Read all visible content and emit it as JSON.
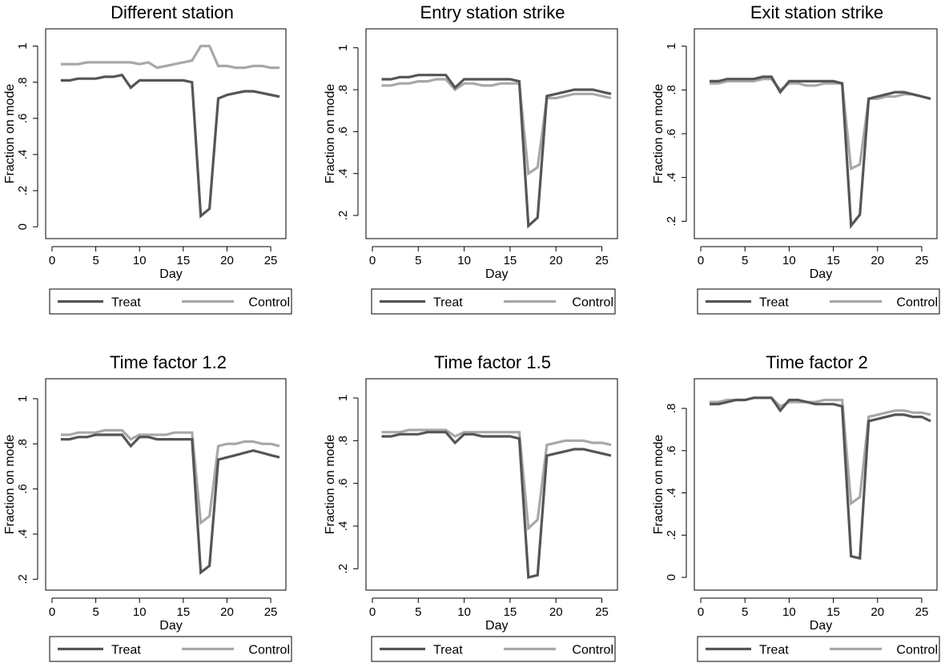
{
  "figure": {
    "panels": [
      {
        "title": "Different station",
        "xlabel": "Day",
        "ylabel": "Fraction on mode"
      },
      {
        "title": "Entry station strike",
        "xlabel": "Day",
        "ylabel": "Fraction on mode"
      },
      {
        "title": "Exit station strike",
        "xlabel": "Day",
        "ylabel": "Fraction on mode"
      },
      {
        "title": "Time factor 1.2",
        "xlabel": "Day",
        "ylabel": "Fraction on mode"
      },
      {
        "title": "Time factor 1.5",
        "xlabel": "Day",
        "ylabel": "Fraction on mode"
      },
      {
        "title": "Time factor 2",
        "xlabel": "Day",
        "ylabel": "Fraction on mode"
      }
    ],
    "legend": {
      "treat": "Treat",
      "control": "Control"
    },
    "colors": {
      "treat": "#555555",
      "control": "#a8a8a8"
    }
  },
  "chart_data": [
    {
      "type": "line",
      "title": "Different station",
      "xlabel": "Day",
      "ylabel": "Fraction on mode",
      "xlim": [
        0,
        26
      ],
      "ylim": [
        -0.03,
        1.06
      ],
      "xticks": [
        0,
        5,
        10,
        15,
        20,
        25
      ],
      "xtick_labels": [
        "0",
        "5",
        "10",
        "15",
        "20",
        "25"
      ],
      "yticks": [
        0,
        0.2,
        0.4,
        0.6,
        0.8,
        1
      ],
      "ytick_labels": [
        "0",
        ".2",
        ".4",
        ".6",
        ".8",
        "1"
      ],
      "grid": false,
      "legend_position": "bottom",
      "x": [
        1,
        2,
        3,
        4,
        5,
        6,
        7,
        8,
        9,
        10,
        11,
        12,
        13,
        14,
        15,
        16,
        17,
        18,
        19,
        20,
        21,
        22,
        23,
        24,
        25,
        26
      ],
      "series": [
        {
          "name": "Treat",
          "values": [
            0.81,
            0.81,
            0.82,
            0.82,
            0.82,
            0.83,
            0.83,
            0.84,
            0.77,
            0.81,
            0.81,
            0.81,
            0.81,
            0.81,
            0.81,
            0.8,
            0.06,
            0.1,
            0.71,
            0.73,
            0.74,
            0.75,
            0.75,
            0.74,
            0.73,
            0.72
          ]
        },
        {
          "name": "Control",
          "values": [
            0.9,
            0.9,
            0.9,
            0.91,
            0.91,
            0.91,
            0.91,
            0.91,
            0.91,
            0.9,
            0.91,
            0.88,
            0.89,
            0.9,
            0.91,
            0.92,
            1.0,
            1.0,
            0.89,
            0.89,
            0.88,
            0.88,
            0.89,
            0.89,
            0.88,
            0.88
          ]
        }
      ]
    },
    {
      "type": "line",
      "title": "Entry station strike",
      "xlabel": "Day",
      "ylabel": "Fraction on mode",
      "xlim": [
        0,
        26
      ],
      "ylim": [
        0.12,
        1.06
      ],
      "xticks": [
        0,
        5,
        10,
        15,
        20,
        25
      ],
      "xtick_labels": [
        "0",
        "5",
        "10",
        "15",
        "20",
        "25"
      ],
      "yticks": [
        0.2,
        0.4,
        0.6,
        0.8,
        1
      ],
      "ytick_labels": [
        ".2",
        ".4",
        ".6",
        ".8",
        "1"
      ],
      "grid": false,
      "legend_position": "bottom",
      "x": [
        1,
        2,
        3,
        4,
        5,
        6,
        7,
        8,
        9,
        10,
        11,
        12,
        13,
        14,
        15,
        16,
        17,
        18,
        19,
        20,
        21,
        22,
        23,
        24,
        25,
        26
      ],
      "series": [
        {
          "name": "Treat",
          "values": [
            0.85,
            0.85,
            0.86,
            0.86,
            0.87,
            0.87,
            0.87,
            0.87,
            0.81,
            0.85,
            0.85,
            0.85,
            0.85,
            0.85,
            0.85,
            0.84,
            0.15,
            0.19,
            0.77,
            0.78,
            0.79,
            0.8,
            0.8,
            0.8,
            0.79,
            0.78
          ]
        },
        {
          "name": "Control",
          "values": [
            0.82,
            0.82,
            0.83,
            0.83,
            0.84,
            0.84,
            0.85,
            0.85,
            0.8,
            0.83,
            0.83,
            0.82,
            0.82,
            0.83,
            0.83,
            0.83,
            0.4,
            0.43,
            0.76,
            0.76,
            0.77,
            0.78,
            0.78,
            0.78,
            0.77,
            0.76
          ]
        }
      ]
    },
    {
      "type": "line",
      "title": "Exit station strike",
      "xlabel": "Day",
      "ylabel": "Fraction on mode",
      "xlim": [
        0,
        26
      ],
      "ylim": [
        0.15,
        1.05
      ],
      "xticks": [
        0,
        5,
        10,
        15,
        20,
        25
      ],
      "xtick_labels": [
        "0",
        "5",
        "10",
        "15",
        "20",
        "25"
      ],
      "yticks": [
        0.2,
        0.4,
        0.6,
        0.8,
        1
      ],
      "ytick_labels": [
        ".2",
        ".4",
        ".6",
        ".8",
        "1"
      ],
      "grid": false,
      "legend_position": "bottom",
      "x": [
        1,
        2,
        3,
        4,
        5,
        6,
        7,
        8,
        9,
        10,
        11,
        12,
        13,
        14,
        15,
        16,
        17,
        18,
        19,
        20,
        21,
        22,
        23,
        24,
        25,
        26
      ],
      "series": [
        {
          "name": "Treat",
          "values": [
            0.84,
            0.84,
            0.85,
            0.85,
            0.85,
            0.85,
            0.86,
            0.86,
            0.79,
            0.84,
            0.84,
            0.84,
            0.84,
            0.84,
            0.84,
            0.83,
            0.18,
            0.23,
            0.76,
            0.77,
            0.78,
            0.79,
            0.79,
            0.78,
            0.77,
            0.76
          ]
        },
        {
          "name": "Control",
          "values": [
            0.83,
            0.83,
            0.84,
            0.84,
            0.84,
            0.84,
            0.85,
            0.85,
            0.8,
            0.83,
            0.83,
            0.82,
            0.82,
            0.83,
            0.83,
            0.83,
            0.44,
            0.46,
            0.76,
            0.76,
            0.77,
            0.77,
            0.78,
            0.78,
            0.77,
            0.76
          ]
        }
      ]
    },
    {
      "type": "line",
      "title": "Time factor 1.2",
      "xlabel": "Day",
      "ylabel": "Fraction on mode",
      "xlim": [
        0,
        26
      ],
      "ylim": [
        0.18,
        1.06
      ],
      "xticks": [
        0,
        5,
        10,
        15,
        20,
        25
      ],
      "xtick_labels": [
        "0",
        "5",
        "10",
        "15",
        "20",
        "25"
      ],
      "yticks": [
        0.2,
        0.4,
        0.6,
        0.8,
        1
      ],
      "ytick_labels": [
        ".2",
        ".4",
        ".6",
        ".8",
        "1"
      ],
      "grid": false,
      "legend_position": "bottom",
      "x": [
        1,
        2,
        3,
        4,
        5,
        6,
        7,
        8,
        9,
        10,
        11,
        12,
        13,
        14,
        15,
        16,
        17,
        18,
        19,
        20,
        21,
        22,
        23,
        24,
        25,
        26
      ],
      "series": [
        {
          "name": "Treat",
          "values": [
            0.82,
            0.82,
            0.83,
            0.83,
            0.84,
            0.84,
            0.84,
            0.84,
            0.79,
            0.83,
            0.83,
            0.82,
            0.82,
            0.82,
            0.82,
            0.82,
            0.23,
            0.26,
            0.73,
            0.74,
            0.75,
            0.76,
            0.77,
            0.76,
            0.75,
            0.74
          ]
        },
        {
          "name": "Control",
          "values": [
            0.84,
            0.84,
            0.85,
            0.85,
            0.85,
            0.86,
            0.86,
            0.86,
            0.82,
            0.84,
            0.84,
            0.84,
            0.84,
            0.85,
            0.85,
            0.85,
            0.45,
            0.48,
            0.79,
            0.8,
            0.8,
            0.81,
            0.81,
            0.8,
            0.8,
            0.79
          ]
        }
      ]
    },
    {
      "type": "line",
      "title": "Time factor 1.5",
      "xlabel": "Day",
      "ylabel": "Fraction on mode",
      "xlim": [
        0,
        26
      ],
      "ylim": [
        0.13,
        1.06
      ],
      "xticks": [
        0,
        5,
        10,
        15,
        20,
        25
      ],
      "xtick_labels": [
        "0",
        "5",
        "10",
        "15",
        "20",
        "25"
      ],
      "yticks": [
        0.2,
        0.4,
        0.6,
        0.8,
        1
      ],
      "ytick_labels": [
        ".2",
        ".4",
        ".6",
        ".8",
        "1"
      ],
      "grid": false,
      "legend_position": "bottom",
      "x": [
        1,
        2,
        3,
        4,
        5,
        6,
        7,
        8,
        9,
        10,
        11,
        12,
        13,
        14,
        15,
        16,
        17,
        18,
        19,
        20,
        21,
        22,
        23,
        24,
        25,
        26
      ],
      "series": [
        {
          "name": "Treat",
          "values": [
            0.82,
            0.82,
            0.83,
            0.83,
            0.83,
            0.84,
            0.84,
            0.84,
            0.79,
            0.83,
            0.83,
            0.82,
            0.82,
            0.82,
            0.82,
            0.81,
            0.16,
            0.17,
            0.73,
            0.74,
            0.75,
            0.76,
            0.76,
            0.75,
            0.74,
            0.73
          ]
        },
        {
          "name": "Control",
          "values": [
            0.84,
            0.84,
            0.84,
            0.85,
            0.85,
            0.85,
            0.85,
            0.85,
            0.82,
            0.84,
            0.84,
            0.84,
            0.84,
            0.84,
            0.84,
            0.84,
            0.39,
            0.43,
            0.78,
            0.79,
            0.8,
            0.8,
            0.8,
            0.79,
            0.79,
            0.78
          ]
        }
      ]
    },
    {
      "type": "line",
      "title": "Time factor 2",
      "xlabel": "Day",
      "ylabel": "Fraction on mode",
      "xlim": [
        0,
        26
      ],
      "ylim": [
        -0.03,
        0.91
      ],
      "xticks": [
        0,
        5,
        10,
        15,
        20,
        25
      ],
      "xtick_labels": [
        "0",
        "5",
        "10",
        "15",
        "20",
        "25"
      ],
      "yticks": [
        0,
        0.2,
        0.4,
        0.6,
        0.8
      ],
      "ytick_labels": [
        "0",
        ".2",
        ".4",
        ".6",
        ".8"
      ],
      "grid": false,
      "legend_position": "bottom",
      "x": [
        1,
        2,
        3,
        4,
        5,
        6,
        7,
        8,
        9,
        10,
        11,
        12,
        13,
        14,
        15,
        16,
        17,
        18,
        19,
        20,
        21,
        22,
        23,
        24,
        25,
        26
      ],
      "series": [
        {
          "name": "Treat",
          "values": [
            0.82,
            0.82,
            0.83,
            0.84,
            0.84,
            0.85,
            0.85,
            0.85,
            0.79,
            0.84,
            0.84,
            0.83,
            0.82,
            0.82,
            0.82,
            0.81,
            0.1,
            0.09,
            0.74,
            0.75,
            0.76,
            0.77,
            0.77,
            0.76,
            0.76,
            0.74
          ]
        },
        {
          "name": "Control",
          "values": [
            0.83,
            0.83,
            0.84,
            0.84,
            0.84,
            0.85,
            0.85,
            0.85,
            0.81,
            0.83,
            0.83,
            0.83,
            0.83,
            0.84,
            0.84,
            0.84,
            0.35,
            0.38,
            0.76,
            0.77,
            0.78,
            0.79,
            0.79,
            0.78,
            0.78,
            0.77
          ]
        }
      ]
    }
  ]
}
